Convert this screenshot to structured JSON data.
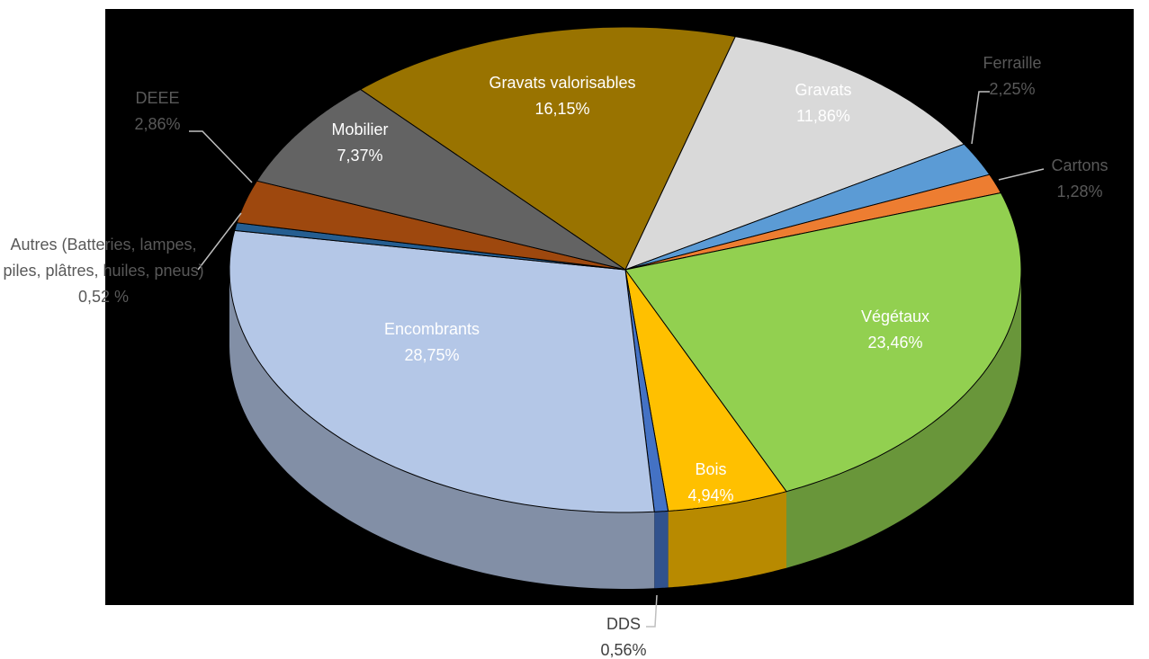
{
  "chart_data": {
    "type": "pie",
    "categories": [
      "Gravats valorisables",
      "Gravats",
      "Ferraille",
      "Cartons",
      "Végétaux",
      "Bois",
      "DDS",
      "Encombrants",
      "Autres (Batteries, lampes, piles, plâtres, huiles, pneus)",
      "DEEE",
      "Mobilier"
    ],
    "values": [
      16.15,
      11.86,
      2.25,
      1.28,
      23.46,
      4.94,
      0.56,
      28.75,
      0.52,
      2.86,
      7.37
    ],
    "value_labels": [
      "16,15%",
      "11,86%",
      "2,25%",
      "1,28%",
      "23,46%",
      "4,94%",
      "0,56%",
      "28,75%",
      "0,52 %",
      "2,86%",
      "7,37%"
    ],
    "colors": [
      "#997300",
      "#d9d9d9",
      "#5b9bd5",
      "#ed7d31",
      "#92d050",
      "#ffc000",
      "#4472c4",
      "#b4c7e7",
      "#255e91",
      "#9e480e",
      "#636363"
    ]
  }
}
